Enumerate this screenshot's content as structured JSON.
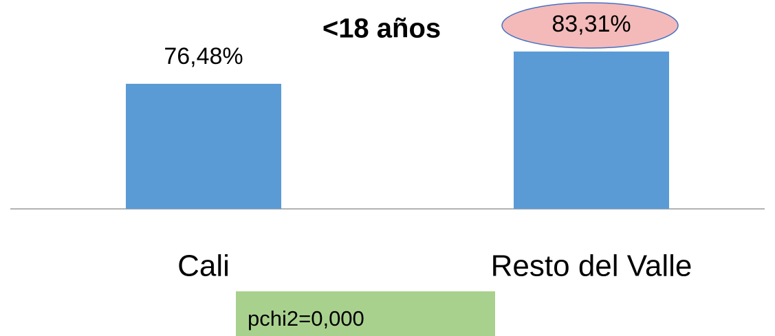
{
  "chart_data": {
    "type": "bar",
    "title": "<18 años",
    "categories": [
      "Cali",
      "Resto del Valle"
    ],
    "values": [
      76.48,
      83.31
    ],
    "value_labels": [
      "76,48%",
      "83,31%"
    ],
    "color": "#5b9bd5",
    "ylim": [
      50,
      90
    ],
    "annotation": "pchi2=0,000"
  }
}
